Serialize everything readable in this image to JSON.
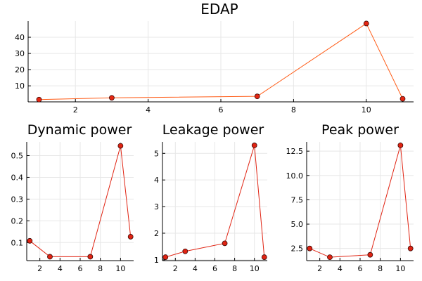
{
  "chart_data": [
    {
      "id": "edap",
      "type": "line",
      "title": "EDAP",
      "xlabel": "",
      "ylabel": "",
      "x": [
        1,
        3,
        7,
        10,
        11
      ],
      "y": [
        1.5,
        2.6,
        3.5,
        48.5,
        2.0
      ],
      "xlim": [
        0.7,
        11.3
      ],
      "ylim": [
        0.1,
        50
      ],
      "xticks": [
        2,
        4,
        6,
        8,
        10
      ],
      "yticks": [
        10,
        20,
        30,
        40
      ],
      "line_color": "#ff5a14",
      "marker_fill": "#e52612",
      "marker_edge": "#3a0a08",
      "grid": true,
      "legend": false
    },
    {
      "id": "dynamic-power",
      "type": "line",
      "title": "Dynamic power",
      "xlabel": "",
      "ylabel": "",
      "x": [
        1,
        3,
        7,
        10,
        11
      ],
      "y": [
        0.108,
        0.035,
        0.035,
        0.545,
        0.127
      ],
      "xlim": [
        0.7,
        11.3
      ],
      "ylim": [
        0.017,
        0.563
      ],
      "xticks": [
        2,
        4,
        6,
        8,
        10
      ],
      "yticks": [
        0.1,
        0.2,
        0.3,
        0.4,
        0.5
      ],
      "line_color": "#e02312",
      "marker_fill": "#e02312",
      "marker_edge": "#3a0a08",
      "grid": true,
      "legend": false
    },
    {
      "id": "leakage-power",
      "type": "line",
      "title": "Leakage power",
      "xlabel": "",
      "ylabel": "",
      "x": [
        1,
        3,
        7,
        10,
        11
      ],
      "y": [
        1.1,
        1.32,
        1.62,
        5.3,
        1.1
      ],
      "xlim": [
        0.7,
        11.3
      ],
      "ylim": [
        0.97,
        5.43
      ],
      "xticks": [
        2,
        4,
        6,
        8,
        10
      ],
      "yticks": [
        1,
        2,
        3,
        4,
        5
      ],
      "line_color": "#e02312",
      "marker_fill": "#e02312",
      "marker_edge": "#3a0a08",
      "grid": true,
      "legend": false
    },
    {
      "id": "peak-power",
      "type": "line",
      "title": "Peak power",
      "xlabel": "",
      "ylabel": "",
      "x": [
        1,
        3,
        7,
        10,
        11
      ],
      "y": [
        2.5,
        1.6,
        1.85,
        13.1,
        2.5
      ],
      "xlim": [
        0.7,
        11.3
      ],
      "ylim": [
        1.25,
        13.45
      ],
      "xticks": [
        2,
        4,
        6,
        8,
        10
      ],
      "yticks": [
        2.5,
        5.0,
        7.5,
        10.0,
        12.5
      ],
      "ytick_labels": [
        "2.5",
        "5.0",
        "7.5",
        "10.0",
        "12.5"
      ],
      "line_color": "#e02312",
      "marker_fill": "#e02312",
      "marker_edge": "#3a0a08",
      "grid": true,
      "legend": false
    }
  ]
}
